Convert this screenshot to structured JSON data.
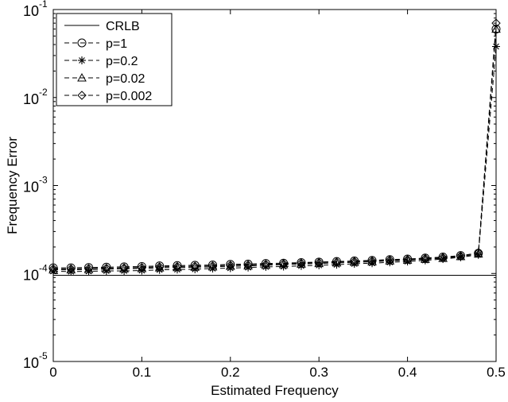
{
  "chart_data": {
    "type": "line",
    "title": "",
    "xlabel": "Estimated Frequency",
    "ylabel": "Frequency Error",
    "xscale": "linear",
    "yscale": "log",
    "xlim": [
      0,
      0.5
    ],
    "ylim": [
      1e-05,
      0.1
    ],
    "grid": false,
    "legend_position": "top-left",
    "x_ticks": [
      {
        "value": 0,
        "label": "0"
      },
      {
        "value": 0.1,
        "label": "0.1"
      },
      {
        "value": 0.2,
        "label": "0.2"
      },
      {
        "value": 0.3,
        "label": "0.3"
      },
      {
        "value": 0.4,
        "label": "0.4"
      },
      {
        "value": 0.5,
        "label": "0.5"
      }
    ],
    "y_ticks": [
      {
        "value": 1e-05,
        "base": "10",
        "exp": "-5"
      },
      {
        "value": 0.0001,
        "base": "10",
        "exp": "-4"
      },
      {
        "value": 0.001,
        "base": "10",
        "exp": "-3"
      },
      {
        "value": 0.01,
        "base": "10",
        "exp": "-2"
      },
      {
        "value": 0.1,
        "base": "10",
        "exp": "-1"
      }
    ],
    "x": [
      0,
      0.02,
      0.04,
      0.06,
      0.08,
      0.1,
      0.12,
      0.14,
      0.16,
      0.18,
      0.2,
      0.22,
      0.24,
      0.26,
      0.28,
      0.3,
      0.32,
      0.34,
      0.36,
      0.38,
      0.4,
      0.42,
      0.44,
      0.46,
      0.48,
      0.5
    ],
    "series": [
      {
        "name": "CRLB",
        "style": "solid",
        "marker": "none",
        "x": [
          0,
          0.5
        ],
        "values": [
          9.55e-05,
          9.55e-05
        ]
      },
      {
        "name": "p=1",
        "style": "dashed",
        "marker": "circle",
        "values": [
          0.000116,
          0.000116,
          0.000117,
          0.000118,
          0.000119,
          0.00012,
          0.000122,
          0.000123,
          0.000124,
          0.000125,
          0.000127,
          0.000128,
          0.00013,
          0.000131,
          0.000133,
          0.000135,
          0.000137,
          0.000139,
          0.000141,
          0.000144,
          0.000146,
          0.00015,
          0.000154,
          0.00016,
          0.00017,
          0.06
        ]
      },
      {
        "name": "p=0.2",
        "style": "dashed",
        "marker": "star",
        "values": [
          0.000106,
          0.000105,
          0.000106,
          0.000107,
          0.000107,
          0.000108,
          0.00011,
          0.000111,
          0.000112,
          0.000114,
          0.000115,
          0.000117,
          0.000119,
          0.00012,
          0.000122,
          0.000124,
          0.000126,
          0.000129,
          0.000131,
          0.000134,
          0.000137,
          0.000141,
          0.000146,
          0.000153,
          0.000163,
          0.038
        ]
      },
      {
        "name": "p=0.02",
        "style": "dashed",
        "marker": "triangle",
        "values": [
          0.00011,
          0.00011,
          0.000111,
          0.000112,
          0.000113,
          0.000114,
          0.000116,
          0.000117,
          0.000118,
          0.000119,
          0.000121,
          0.000122,
          0.000124,
          0.000126,
          0.000128,
          0.00013,
          0.000132,
          0.000134,
          0.000136,
          0.000139,
          0.000142,
          0.000145,
          0.000149,
          0.000156,
          0.000167,
          0.06
        ]
      },
      {
        "name": "p=0.002",
        "style": "dashed",
        "marker": "diamond",
        "values": [
          0.000113,
          0.000113,
          0.000114,
          0.000115,
          0.000116,
          0.000117,
          0.000119,
          0.00012,
          0.000121,
          0.000122,
          0.000124,
          0.000125,
          0.000127,
          0.000129,
          0.000131,
          0.000133,
          0.000135,
          0.000137,
          0.000139,
          0.000142,
          0.000144,
          0.000148,
          0.000152,
          0.000158,
          0.000172,
          0.07
        ]
      }
    ]
  }
}
